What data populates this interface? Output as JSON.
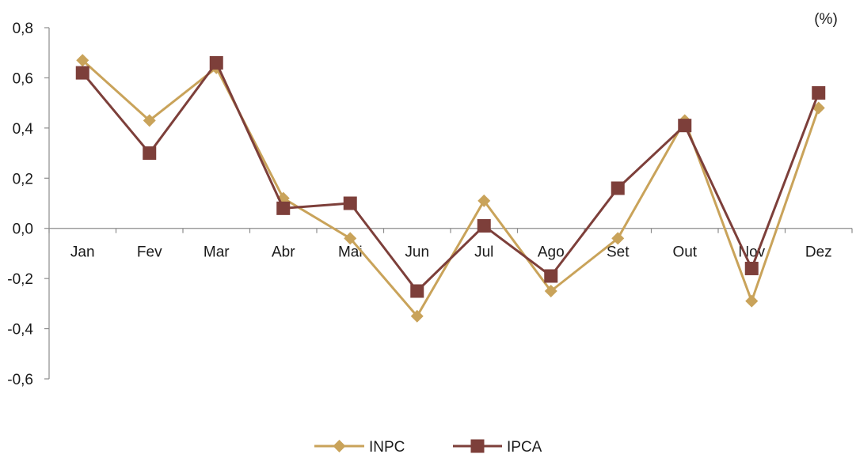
{
  "chart_data": {
    "type": "line",
    "unit_label": "(%)",
    "categories": [
      "Jan",
      "Fev",
      "Mar",
      "Abr",
      "Mai",
      "Jun",
      "Jul",
      "Ago",
      "Set",
      "Out",
      "Nov",
      "Dez"
    ],
    "y_ticks": [
      "0,8",
      "0,6",
      "0,4",
      "0,2",
      "0,0",
      "-0,2",
      "-0,4",
      "-0,6"
    ],
    "ylim": [
      -0.6,
      0.8
    ],
    "grid": false,
    "legend_position": "bottom-center",
    "series": [
      {
        "name": "INPC",
        "color": "#c9a35a",
        "marker": "diamond",
        "values": [
          0.67,
          0.43,
          0.64,
          0.12,
          -0.04,
          -0.35,
          0.11,
          -0.25,
          -0.04,
          0.43,
          -0.29,
          0.48
        ]
      },
      {
        "name": "IPCA",
        "color": "#7d3f3a",
        "marker": "square",
        "values": [
          0.62,
          0.3,
          0.66,
          0.08,
          0.1,
          -0.25,
          0.01,
          -0.19,
          0.16,
          0.41,
          -0.16,
          0.54
        ]
      }
    ]
  }
}
